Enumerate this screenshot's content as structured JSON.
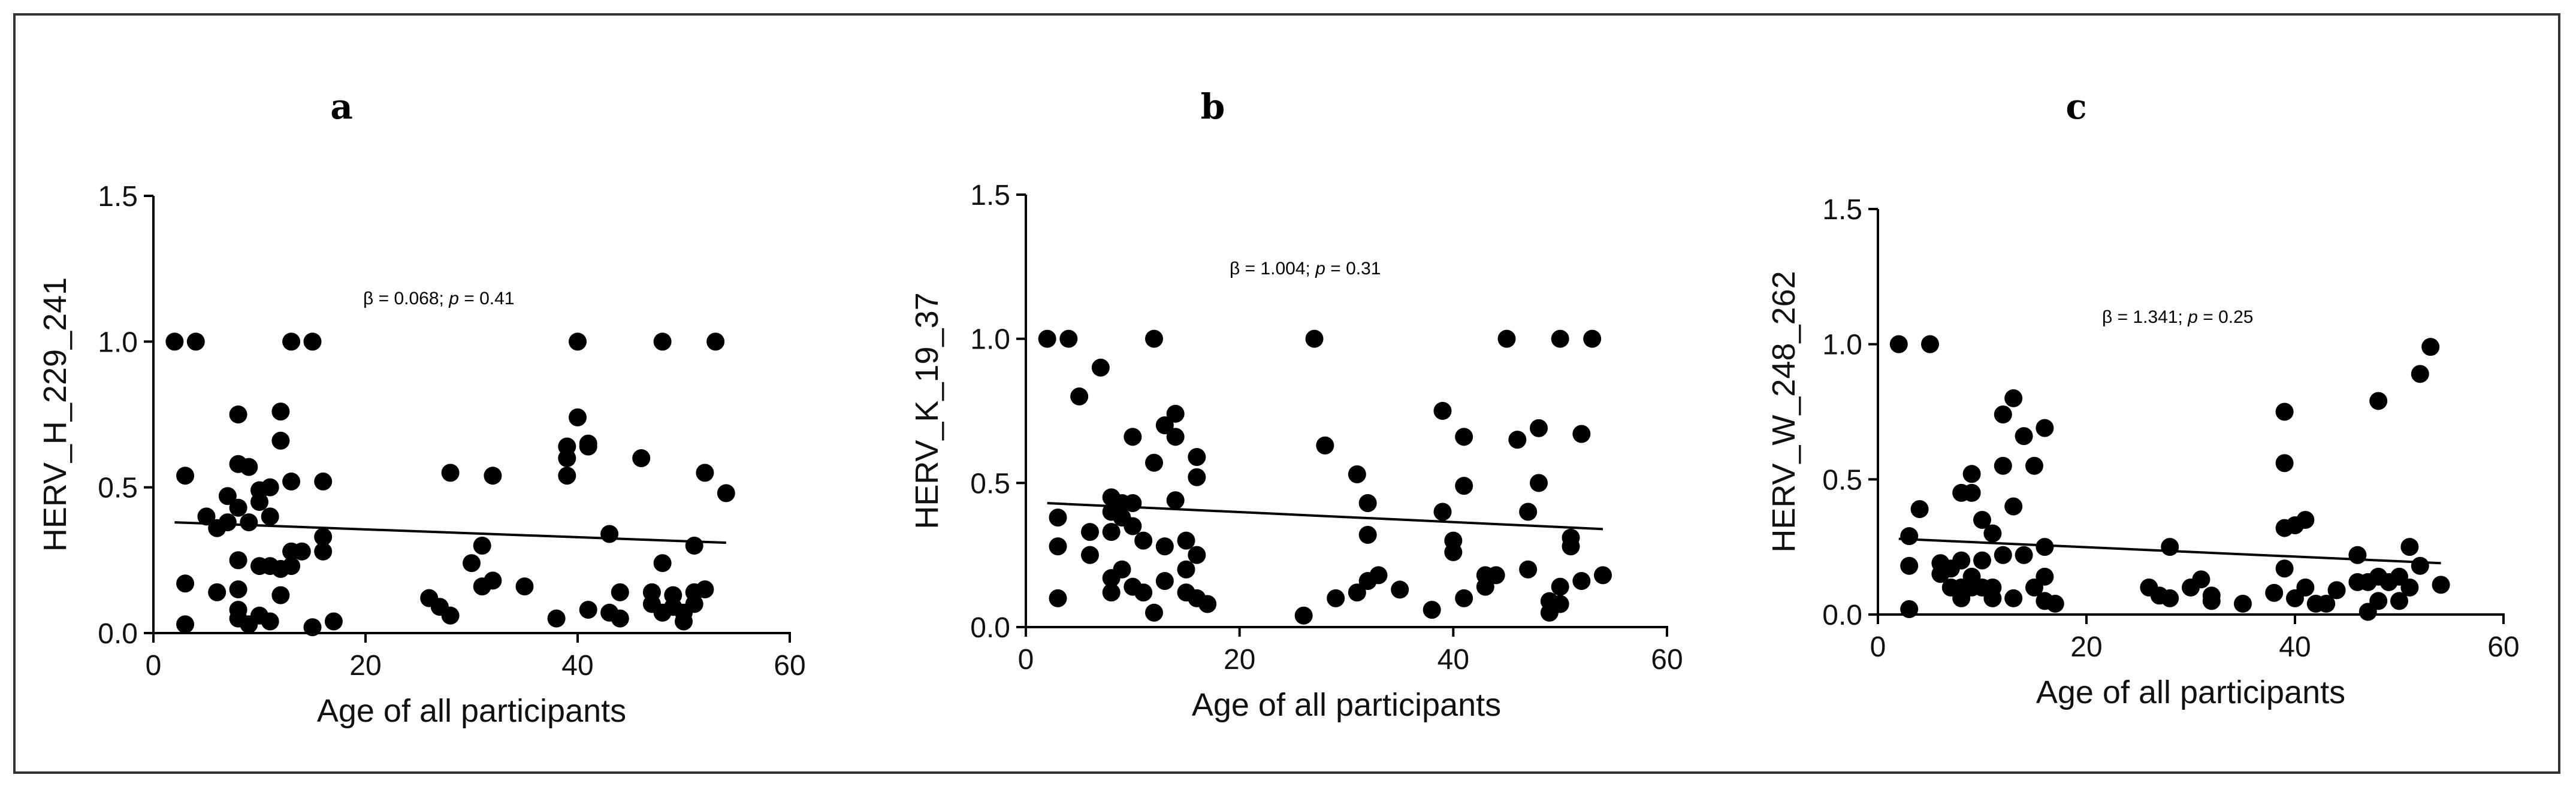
{
  "chart_data": [
    {
      "type": "scatter",
      "panel_label": "a",
      "xlabel": "Age of all participants",
      "ylabel": "HERV_H_229_241",
      "annotation": {
        "beta": "β = 0.068;",
        "p_label": "p",
        "p_value": "= 0.41"
      },
      "xlim": [
        0,
        60
      ],
      "ylim": [
        0,
        1.5
      ],
      "xticks": [
        0,
        20,
        40,
        60
      ],
      "yticks": [
        0.0,
        0.5,
        1.0,
        1.5
      ],
      "xtick_labels": [
        "0",
        "20",
        "40",
        "60"
      ],
      "ytick_labels": [
        "0.0",
        "0.5",
        "1.0",
        "1.5"
      ],
      "regression": {
        "x": [
          2,
          54
        ],
        "y": [
          0.38,
          0.31
        ]
      },
      "points": [
        [
          2,
          1.0
        ],
        [
          4,
          1.0
        ],
        [
          13,
          1.0
        ],
        [
          15,
          1.0
        ],
        [
          40,
          1.0
        ],
        [
          48,
          1.0
        ],
        [
          53,
          1.0
        ],
        [
          3,
          0.54
        ],
        [
          3,
          0.17
        ],
        [
          3,
          0.03
        ],
        [
          5,
          0.4
        ],
        [
          6,
          0.36
        ],
        [
          6,
          0.14
        ],
        [
          7,
          0.38
        ],
        [
          7,
          0.47
        ],
        [
          8,
          0.75
        ],
        [
          8,
          0.58
        ],
        [
          8,
          0.43
        ],
        [
          8,
          0.25
        ],
        [
          8,
          0.15
        ],
        [
          8,
          0.08
        ],
        [
          8,
          0.05
        ],
        [
          9,
          0.57
        ],
        [
          9,
          0.38
        ],
        [
          9,
          0.03
        ],
        [
          10,
          0.49
        ],
        [
          10,
          0.45
        ],
        [
          10,
          0.23
        ],
        [
          10,
          0.06
        ],
        [
          11,
          0.5
        ],
        [
          11,
          0.4
        ],
        [
          11,
          0.23
        ],
        [
          11,
          0.04
        ],
        [
          12,
          0.76
        ],
        [
          12,
          0.66
        ],
        [
          12,
          0.22
        ],
        [
          12,
          0.13
        ],
        [
          13,
          0.52
        ],
        [
          13,
          0.28
        ],
        [
          13,
          0.23
        ],
        [
          14,
          0.28
        ],
        [
          15,
          0.02
        ],
        [
          16,
          0.52
        ],
        [
          16,
          0.33
        ],
        [
          16,
          0.28
        ],
        [
          17,
          0.04
        ],
        [
          26,
          0.12
        ],
        [
          27,
          0.09
        ],
        [
          28,
          0.55
        ],
        [
          28,
          0.06
        ],
        [
          30,
          0.24
        ],
        [
          31,
          0.3
        ],
        [
          31,
          0.16
        ],
        [
          32,
          0.54
        ],
        [
          32,
          0.18
        ],
        [
          35,
          0.16
        ],
        [
          38,
          0.05
        ],
        [
          39,
          0.64
        ],
        [
          39,
          0.6
        ],
        [
          39,
          0.54
        ],
        [
          40,
          0.74
        ],
        [
          41,
          0.65
        ],
        [
          41,
          0.64
        ],
        [
          41,
          0.08
        ],
        [
          43,
          0.34
        ],
        [
          43,
          0.07
        ],
        [
          44,
          0.05
        ],
        [
          44,
          0.14
        ],
        [
          46,
          0.6
        ],
        [
          47,
          0.14
        ],
        [
          47,
          0.1
        ],
        [
          48,
          0.24
        ],
        [
          48,
          0.07
        ],
        [
          49,
          0.13
        ],
        [
          49,
          0.09
        ],
        [
          50,
          0.07
        ],
        [
          50,
          0.04
        ],
        [
          51,
          0.3
        ],
        [
          51,
          0.14
        ],
        [
          51,
          0.1
        ],
        [
          52,
          0.15
        ],
        [
          52,
          0.55
        ],
        [
          54,
          0.48
        ]
      ]
    },
    {
      "type": "scatter",
      "panel_label": "b",
      "xlabel": "Age of all participants",
      "ylabel": "HERV_K_19_37",
      "annotation": {
        "beta": "β = 1.004;",
        "p_label": "p",
        "p_value": "= 0.31"
      },
      "xlim": [
        0,
        60
      ],
      "ylim": [
        0,
        1.5
      ],
      "xticks": [
        0,
        20,
        40,
        60
      ],
      "yticks": [
        0.0,
        0.5,
        1.0,
        1.5
      ],
      "xtick_labels": [
        "0",
        "20",
        "40",
        "60"
      ],
      "ytick_labels": [
        "0.0",
        "0.5",
        "1.0",
        "1.5"
      ],
      "regression": {
        "x": [
          2,
          54
        ],
        "y": [
          0.43,
          0.34
        ]
      },
      "points": [
        [
          2,
          1.0
        ],
        [
          4,
          1.0
        ],
        [
          12,
          1.0
        ],
        [
          27,
          1.0
        ],
        [
          45,
          1.0
        ],
        [
          50,
          1.0
        ],
        [
          53,
          1.0
        ],
        [
          3,
          0.38
        ],
        [
          3,
          0.28
        ],
        [
          3,
          0.1
        ],
        [
          5,
          0.8
        ],
        [
          6,
          0.33
        ],
        [
          6,
          0.25
        ],
        [
          7,
          0.9
        ],
        [
          8,
          0.45
        ],
        [
          8,
          0.4
        ],
        [
          8,
          0.33
        ],
        [
          8,
          0.17
        ],
        [
          8,
          0.12
        ],
        [
          9,
          0.43
        ],
        [
          9,
          0.38
        ],
        [
          9,
          0.2
        ],
        [
          10,
          0.66
        ],
        [
          10,
          0.43
        ],
        [
          10,
          0.35
        ],
        [
          10,
          0.14
        ],
        [
          11,
          0.3
        ],
        [
          11,
          0.12
        ],
        [
          12,
          0.57
        ],
        [
          12,
          0.05
        ],
        [
          13,
          0.7
        ],
        [
          13,
          0.28
        ],
        [
          13,
          0.16
        ],
        [
          14,
          0.74
        ],
        [
          14,
          0.66
        ],
        [
          14,
          0.44
        ],
        [
          15,
          0.3
        ],
        [
          15,
          0.2
        ],
        [
          15,
          0.12
        ],
        [
          16,
          0.59
        ],
        [
          16,
          0.52
        ],
        [
          16,
          0.25
        ],
        [
          16,
          0.1
        ],
        [
          17,
          0.08
        ],
        [
          26,
          0.04
        ],
        [
          28,
          0.63
        ],
        [
          29,
          0.1
        ],
        [
          31,
          0.12
        ],
        [
          31,
          0.53
        ],
        [
          32,
          0.43
        ],
        [
          32,
          0.32
        ],
        [
          32,
          0.16
        ],
        [
          33,
          0.18
        ],
        [
          35,
          0.13
        ],
        [
          38,
          0.06
        ],
        [
          39,
          0.75
        ],
        [
          39,
          0.4
        ],
        [
          40,
          0.3
        ],
        [
          40,
          0.26
        ],
        [
          41,
          0.49
        ],
        [
          41,
          0.66
        ],
        [
          41,
          0.1
        ],
        [
          43,
          0.18
        ],
        [
          43,
          0.14
        ],
        [
          44,
          0.18
        ],
        [
          46,
          0.65
        ],
        [
          47,
          0.4
        ],
        [
          47,
          0.2
        ],
        [
          48,
          0.69
        ],
        [
          48,
          0.5
        ],
        [
          49,
          0.09
        ],
        [
          49,
          0.05
        ],
        [
          50,
          0.14
        ],
        [
          50,
          0.08
        ],
        [
          51,
          0.31
        ],
        [
          51,
          0.28
        ],
        [
          52,
          0.67
        ],
        [
          52,
          0.16
        ],
        [
          54,
          0.18
        ]
      ]
    },
    {
      "type": "scatter",
      "panel_label": "c",
      "xlabel": "Age of all participants",
      "ylabel": "HERV_W_248_262",
      "annotation": {
        "beta": "β = 1.341;",
        "p_label": "p",
        "p_value": "= 0.25"
      },
      "xlim": [
        0,
        60
      ],
      "ylim": [
        0,
        1.5
      ],
      "xticks": [
        0,
        20,
        40,
        60
      ],
      "yticks": [
        0.0,
        0.5,
        1.0,
        1.5
      ],
      "xtick_labels": [
        "0",
        "20",
        "40",
        "60"
      ],
      "ytick_labels": [
        "0.0",
        "0.5",
        "1.0",
        "1.5"
      ],
      "regression": {
        "x": [
          2,
          54
        ],
        "y": [
          0.28,
          0.19
        ]
      },
      "points": [
        [
          2,
          1.0
        ],
        [
          5,
          1.0
        ],
        [
          53,
          0.99
        ],
        [
          52,
          0.89
        ],
        [
          48,
          0.79
        ],
        [
          3,
          0.29
        ],
        [
          3,
          0.18
        ],
        [
          3,
          0.02
        ],
        [
          4,
          0.39
        ],
        [
          6,
          0.19
        ],
        [
          6,
          0.15
        ],
        [
          7,
          0.17
        ],
        [
          7,
          0.1
        ],
        [
          8,
          0.45
        ],
        [
          8,
          0.2
        ],
        [
          8,
          0.1
        ],
        [
          8,
          0.06
        ],
        [
          9,
          0.52
        ],
        [
          9,
          0.45
        ],
        [
          9,
          0.14
        ],
        [
          9,
          0.1
        ],
        [
          10,
          0.35
        ],
        [
          10,
          0.2
        ],
        [
          10,
          0.1
        ],
        [
          11,
          0.3
        ],
        [
          11,
          0.1
        ],
        [
          11,
          0.06
        ],
        [
          12,
          0.74
        ],
        [
          12,
          0.55
        ],
        [
          12,
          0.22
        ],
        [
          13,
          0.8
        ],
        [
          13,
          0.4
        ],
        [
          13,
          0.06
        ],
        [
          14,
          0.66
        ],
        [
          14,
          0.22
        ],
        [
          15,
          0.55
        ],
        [
          15,
          0.1
        ],
        [
          16,
          0.69
        ],
        [
          16,
          0.25
        ],
        [
          16,
          0.14
        ],
        [
          16,
          0.05
        ],
        [
          17,
          0.04
        ],
        [
          26,
          0.1
        ],
        [
          27,
          0.07
        ],
        [
          28,
          0.25
        ],
        [
          28,
          0.06
        ],
        [
          30,
          0.1
        ],
        [
          31,
          0.13
        ],
        [
          32,
          0.07
        ],
        [
          32,
          0.05
        ],
        [
          35,
          0.04
        ],
        [
          38,
          0.08
        ],
        [
          39,
          0.75
        ],
        [
          39,
          0.56
        ],
        [
          39,
          0.32
        ],
        [
          39,
          0.17
        ],
        [
          40,
          0.33
        ],
        [
          40,
          0.06
        ],
        [
          41,
          0.35
        ],
        [
          41,
          0.1
        ],
        [
          42,
          0.04
        ],
        [
          43,
          0.04
        ],
        [
          44,
          0.09
        ],
        [
          46,
          0.22
        ],
        [
          46,
          0.12
        ],
        [
          47,
          0.12
        ],
        [
          47,
          0.01
        ],
        [
          48,
          0.05
        ],
        [
          48,
          0.14
        ],
        [
          49,
          0.12
        ],
        [
          50,
          0.14
        ],
        [
          50,
          0.05
        ],
        [
          51,
          0.25
        ],
        [
          51,
          0.1
        ],
        [
          52,
          0.18
        ],
        [
          54,
          0.11
        ]
      ]
    }
  ]
}
